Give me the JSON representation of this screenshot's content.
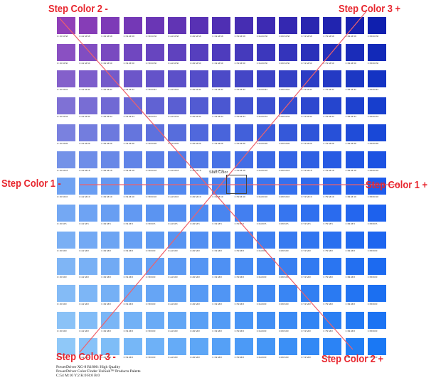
{
  "step_labels": {
    "step_color_2_minus": "Step Color 2 -",
    "step_color_3_plus": "Step Color 3 +",
    "step_color_1_minus": "Step Color 1 -",
    "step_color_1_plus": "Step Color 1 +",
    "step_color_3_minus": "Step Color 3 -",
    "step_color_2_plus": "Step Color 2 +"
  },
  "start_color_label": "Start Color",
  "footer": {
    "line1": "PowerDriver XG-8 R1800: High Quality",
    "line2": "PowerDriver Color Finder UniSub™ Products Palette",
    "line3": "C:54 M:10 Y:2 K:0 R:0 B:0"
  },
  "colors": {
    "label_red": "#e8262e",
    "line_red": "#f0606a",
    "start_box": "#444444"
  },
  "swatch_grid": {
    "rows": 13,
    "cols": 15,
    "top_left_color": "#8f3fb8",
    "top_right_color": "#0f1fae",
    "center_color": "#2f7af2",
    "bottom_left_color": "#8fc8f8",
    "bottom_right_color": "#1a78f4",
    "row_labels": [
      [
        "C:19 M:58",
        "C:24 M:58",
        "C:29 M:58",
        "C:34 M:58",
        "C:39 M:58",
        "C:44 M:58",
        "C:49 M:58",
        "C:54 M:58",
        "C:59 M:58",
        "C:64 M:58",
        "C:69 M:58",
        "C:74 M:58",
        "C:79 M:58",
        "C:84 M:58",
        "C:89 M:58"
      ],
      [
        "C:19 M:50",
        "C:24 M:50",
        "C:29 M:50",
        "C:34 M:50",
        "C:39 M:50",
        "C:44 M:50",
        "C:49 M:50",
        "C:54 M:50",
        "C:59 M:50",
        "C:64 M:50",
        "C:69 M:50",
        "C:74 M:50",
        "C:79 M:50",
        "C:84 M:50",
        "C:89 M:50"
      ],
      [
        "C:19 M:42",
        "C:24 M:42",
        "C:29 M:42",
        "C:34 M:42",
        "C:39 M:42",
        "C:44 M:42",
        "C:49 M:42",
        "C:54 M:42",
        "C:59 M:42",
        "C:64 M:42",
        "C:69 M:42",
        "C:74 M:42",
        "C:79 M:42",
        "C:84 M:42",
        "C:89 M:42"
      ],
      [
        "C:19 M:34",
        "C:24 M:34",
        "C:29 M:34",
        "C:34 M:34",
        "C:39 M:34",
        "C:44 M:34",
        "C:49 M:34",
        "C:54 M:34",
        "C:59 M:34",
        "C:64 M:34",
        "C:69 M:34",
        "C:74 M:34",
        "C:79 M:34",
        "C:84 M:34",
        "C:89 M:34"
      ],
      [
        "C:19 M:26",
        "C:24 M:26",
        "C:29 M:26",
        "C:34 M:26",
        "C:39 M:26",
        "C:44 M:26",
        "C:49 M:26",
        "C:54 M:26",
        "C:59 M:26",
        "C:64 M:26",
        "C:69 M:26",
        "C:74 M:26",
        "C:79 M:26",
        "C:84 M:26",
        "C:89 M:26"
      ],
      [
        "C:19 M:18",
        "C:24 M:18",
        "C:29 M:18",
        "C:34 M:18",
        "C:39 M:18",
        "C:44 M:18",
        "C:49 M:18",
        "C:54 M:18",
        "C:59 M:18",
        "C:64 M:18",
        "C:69 M:18",
        "C:74 M:18",
        "C:79 M:18",
        "C:84 M:18",
        "C:89 M:18"
      ],
      [
        "C:19 M:10",
        "C:24 M:10",
        "C:29 M:10",
        "C:34 M:10",
        "C:39 M:10",
        "C:44 M:10",
        "C:49 M:10",
        "C:54 M:10",
        "C:59 M:10",
        "C:64 M:10",
        "C:69 M:10",
        "C:74 M:10",
        "C:79 M:10",
        "C:84 M:10",
        "C:89 M:10"
      ],
      [
        "C:19 M:5",
        "C:24 M:5",
        "C:29 M:5",
        "C:34 M:5",
        "C:39 M:5",
        "C:44 M:5",
        "C:49 M:5",
        "C:54 M:5",
        "C:59 M:5",
        "C:64 M:5",
        "C:69 M:5",
        "C:74 M:5",
        "C:79 M:5",
        "C:84 M:5",
        "C:89 M:5"
      ],
      [
        "C:19 M:0",
        "C:24 M:0",
        "C:29 M:0",
        "C:34 M:0",
        "C:39 M:0",
        "C:44 M:0",
        "C:49 M:0",
        "C:54 M:0",
        "C:59 M:0",
        "C:64 M:0",
        "C:69 M:0",
        "C:74 M:0",
        "C:79 M:0",
        "C:84 M:0",
        "C:89 M:0"
      ],
      [
        "C:19 M:0",
        "C:24 M:0",
        "C:29 M:0",
        "C:34 M:0",
        "C:39 M:0",
        "C:44 M:0",
        "C:49 M:0",
        "C:54 M:0",
        "C:59 M:0",
        "C:64 M:0",
        "C:69 M:0",
        "C:74 M:0",
        "C:79 M:0",
        "C:84 M:0",
        "C:89 M:0"
      ],
      [
        "C:19 M:0",
        "C:24 M:0",
        "C:29 M:0",
        "C:34 M:0",
        "C:39 M:0",
        "C:44 M:0",
        "C:49 M:0",
        "C:54 M:0",
        "C:59 M:0",
        "C:64 M:0",
        "C:69 M:0",
        "C:74 M:0",
        "C:79 M:0",
        "C:84 M:0",
        "C:89 M:0"
      ],
      [
        "C:19 M:0",
        "C:24 M:0",
        "C:29 M:0",
        "C:34 M:0",
        "C:39 M:0",
        "C:44 M:0",
        "C:49 M:0",
        "C:54 M:0",
        "C:59 M:0",
        "C:64 M:0",
        "C:69 M:0",
        "C:74 M:0",
        "C:79 M:0",
        "C:84 M:0",
        "C:89 M:0"
      ],
      [
        "C:19 M:0",
        "C:24 M:0",
        "C:29 M:0",
        "C:34 M:0",
        "C:39 M:0",
        "C:44 M:0",
        "C:49 M:0",
        "C:54 M:0",
        "C:59 M:0",
        "C:64 M:0",
        "C:69 M:0",
        "C:74 M:0",
        "C:79 M:0",
        "C:84 M:0",
        "C:89 M:0"
      ]
    ]
  }
}
